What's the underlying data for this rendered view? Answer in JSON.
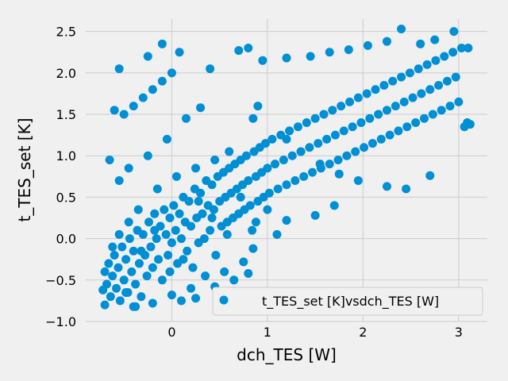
{
  "chart_data": {
    "type": "scatter",
    "xlabel": "dch_TES [W]",
    "ylabel": "t_TES_set [K]",
    "xlim": [
      -0.9,
      3.3
    ],
    "ylim": [
      -1.0,
      2.65
    ],
    "xticks": [
      0,
      1,
      2,
      3
    ],
    "yticks": [
      -1.0,
      -0.5,
      0.0,
      0.5,
      1.0,
      1.5,
      2.0,
      2.5
    ],
    "xtick_labels": [
      "0",
      "1",
      "2",
      "3"
    ],
    "ytick_labels": [
      "−1.0",
      "−0.5",
      "0.0",
      "0.5",
      "1.0",
      "1.5",
      "2.0",
      "2.5"
    ],
    "grid": true,
    "legend_position": "bottom-right",
    "series": [
      {
        "name": "t_TES_set [K]vsdch_TES [W]",
        "color": "#008fd5",
        "points": [
          [
            -0.72,
            -0.62
          ],
          [
            -0.7,
            -0.8
          ],
          [
            -0.68,
            -0.55
          ],
          [
            -0.66,
            -0.3
          ],
          [
            -0.64,
            -0.7
          ],
          [
            -0.62,
            -0.45
          ],
          [
            -0.6,
            -0.2
          ],
          [
            -0.58,
            -0.6
          ],
          [
            -0.56,
            -0.35
          ],
          [
            -0.54,
            -0.75
          ],
          [
            -0.52,
            -0.1
          ],
          [
            -0.5,
            -0.5
          ],
          [
            -0.48,
            -0.25
          ],
          [
            -0.46,
            -0.65
          ],
          [
            -0.44,
            0.0
          ],
          [
            -0.42,
            -0.4
          ],
          [
            -0.4,
            -0.15
          ],
          [
            -0.38,
            -0.55
          ],
          [
            -0.36,
            0.1
          ],
          [
            -0.34,
            -0.3
          ],
          [
            -0.32,
            -0.7
          ],
          [
            -0.3,
            0.05
          ],
          [
            -0.28,
            -0.2
          ],
          [
            -0.26,
            -0.45
          ],
          [
            -0.24,
            0.2
          ],
          [
            -0.22,
            -0.1
          ],
          [
            -0.2,
            -0.35
          ],
          [
            -0.18,
            0.3
          ],
          [
            -0.16,
            0.0
          ],
          [
            -0.14,
            -0.25
          ],
          [
            -0.12,
            0.15
          ],
          [
            -0.1,
            -0.5
          ],
          [
            -0.08,
            0.35
          ],
          [
            -0.06,
            0.05
          ],
          [
            -0.04,
            -0.2
          ],
          [
            -0.02,
            0.25
          ],
          [
            0.0,
            -0.05
          ],
          [
            0.02,
            0.4
          ],
          [
            0.04,
            0.1
          ],
          [
            0.06,
            -0.3
          ],
          [
            0.08,
            0.3
          ],
          [
            0.1,
            0.0
          ],
          [
            0.12,
            0.5
          ],
          [
            0.14,
            0.2
          ],
          [
            0.16,
            -0.15
          ],
          [
            0.18,
            0.45
          ],
          [
            0.2,
            0.15
          ],
          [
            0.22,
            -0.35
          ],
          [
            0.24,
            0.6
          ],
          [
            0.26,
            0.25
          ],
          [
            0.28,
            -0.05
          ],
          [
            0.3,
            0.55
          ],
          [
            0.32,
            0.3
          ],
          [
            0.34,
            0.0
          ],
          [
            0.36,
            0.7
          ],
          [
            0.38,
            0.4
          ],
          [
            0.4,
            0.1
          ],
          [
            0.42,
            0.65
          ],
          [
            0.44,
            0.35
          ],
          [
            0.46,
            -0.2
          ],
          [
            0.48,
            0.75
          ],
          [
            0.5,
            0.45
          ],
          [
            0.52,
            0.15
          ],
          [
            0.54,
            0.8
          ],
          [
            0.56,
            0.5
          ],
          [
            0.58,
            0.2
          ],
          [
            0.6,
            0.85
          ],
          [
            0.62,
            0.55
          ],
          [
            0.64,
            0.25
          ],
          [
            0.66,
            0.9
          ],
          [
            0.68,
            0.6
          ],
          [
            0.7,
            0.3
          ],
          [
            0.72,
            0.95
          ],
          [
            0.74,
            0.65
          ],
          [
            0.76,
            0.35
          ],
          [
            0.78,
            1.0
          ],
          [
            0.8,
            0.7
          ],
          [
            0.82,
            0.4
          ],
          [
            0.84,
            0.1
          ],
          [
            0.86,
            1.05
          ],
          [
            0.88,
            0.75
          ],
          [
            0.9,
            0.45
          ],
          [
            0.92,
            1.1
          ],
          [
            0.94,
            0.8
          ],
          [
            0.96,
            0.5
          ],
          [
            0.98,
            1.15
          ],
          [
            1.0,
            0.85
          ],
          [
            1.02,
            0.55
          ],
          [
            1.05,
            1.2
          ],
          [
            1.08,
            0.9
          ],
          [
            1.11,
            0.6
          ],
          [
            1.14,
            1.25
          ],
          [
            1.17,
            0.95
          ],
          [
            1.2,
            0.65
          ],
          [
            1.23,
            1.3
          ],
          [
            1.26,
            1.0
          ],
          [
            1.29,
            0.7
          ],
          [
            1.32,
            1.35
          ],
          [
            1.35,
            1.05
          ],
          [
            1.38,
            0.75
          ],
          [
            1.41,
            1.4
          ],
          [
            1.44,
            1.1
          ],
          [
            1.47,
            0.8
          ],
          [
            1.5,
            1.45
          ],
          [
            1.53,
            1.15
          ],
          [
            1.56,
            0.85
          ],
          [
            1.59,
            1.5
          ],
          [
            1.62,
            1.2
          ],
          [
            1.65,
            0.9
          ],
          [
            1.68,
            1.55
          ],
          [
            1.71,
            1.25
          ],
          [
            1.74,
            0.95
          ],
          [
            1.77,
            1.6
          ],
          [
            1.8,
            1.3
          ],
          [
            1.83,
            1.0
          ],
          [
            1.86,
            1.65
          ],
          [
            1.89,
            1.35
          ],
          [
            1.92,
            1.05
          ],
          [
            1.95,
            1.7
          ],
          [
            1.98,
            1.4
          ],
          [
            2.01,
            1.1
          ],
          [
            2.04,
            1.75
          ],
          [
            2.07,
            1.45
          ],
          [
            2.1,
            1.15
          ],
          [
            2.13,
            1.8
          ],
          [
            2.16,
            1.5
          ],
          [
            2.19,
            1.2
          ],
          [
            2.22,
            1.85
          ],
          [
            2.25,
            1.55
          ],
          [
            2.28,
            1.25
          ],
          [
            2.31,
            1.9
          ],
          [
            2.34,
            1.6
          ],
          [
            2.37,
            1.3
          ],
          [
            2.4,
            1.95
          ],
          [
            2.43,
            1.65
          ],
          [
            2.46,
            1.35
          ],
          [
            2.49,
            2.0
          ],
          [
            2.52,
            1.7
          ],
          [
            2.55,
            1.4
          ],
          [
            2.58,
            2.05
          ],
          [
            2.61,
            1.75
          ],
          [
            2.64,
            1.45
          ],
          [
            2.67,
            2.1
          ],
          [
            2.7,
            1.8
          ],
          [
            2.73,
            1.5
          ],
          [
            2.76,
            2.15
          ],
          [
            2.79,
            1.85
          ],
          [
            2.82,
            1.55
          ],
          [
            2.85,
            2.2
          ],
          [
            2.88,
            1.9
          ],
          [
            2.91,
            1.6
          ],
          [
            2.94,
            2.25
          ],
          [
            2.97,
            1.95
          ],
          [
            3.0,
            1.65
          ],
          [
            3.03,
            2.3
          ],
          [
            3.06,
            1.35
          ],
          [
            3.09,
            1.4
          ],
          [
            3.12,
            1.38
          ],
          [
            3.1,
            2.3
          ],
          [
            2.95,
            2.5
          ],
          [
            -0.6,
            1.55
          ],
          [
            -0.5,
            1.5
          ],
          [
            -0.4,
            1.6
          ],
          [
            -0.3,
            1.7
          ],
          [
            -0.2,
            1.8
          ],
          [
            -0.1,
            1.9
          ],
          [
            0.0,
            2.0
          ],
          [
            -0.25,
            2.2
          ],
          [
            -0.1,
            2.35
          ],
          [
            -0.55,
            2.05
          ],
          [
            0.08,
            2.25
          ],
          [
            0.4,
            2.05
          ],
          [
            0.8,
            2.3
          ],
          [
            0.7,
            2.27
          ],
          [
            0.95,
            2.15
          ],
          [
            1.2,
            2.18
          ],
          [
            1.45,
            2.2
          ],
          [
            1.65,
            2.25
          ],
          [
            1.85,
            2.28
          ],
          [
            2.05,
            2.33
          ],
          [
            2.25,
            2.38
          ],
          [
            2.4,
            2.53
          ],
          [
            2.6,
            2.35
          ],
          [
            2.75,
            2.4
          ],
          [
            1.2,
            1.2
          ],
          [
            1.35,
            1.05
          ],
          [
            1.55,
            0.9
          ],
          [
            1.75,
            0.78
          ],
          [
            1.95,
            0.7
          ],
          [
            2.25,
            0.63
          ],
          [
            2.45,
            0.6
          ],
          [
            2.7,
            0.76
          ],
          [
            1.5,
            0.28
          ],
          [
            1.7,
            0.4
          ],
          [
            -0.45,
            0.2
          ],
          [
            -0.35,
            0.35
          ],
          [
            -0.15,
            0.6
          ],
          [
            0.05,
            0.75
          ],
          [
            0.25,
            0.85
          ],
          [
            0.45,
            0.95
          ],
          [
            0.6,
            1.05
          ],
          [
            -0.65,
            0.95
          ],
          [
            -0.55,
            0.7
          ],
          [
            -0.45,
            0.85
          ],
          [
            0.85,
            1.45
          ],
          [
            0.9,
            1.6
          ],
          [
            0.3,
            1.58
          ],
          [
            0.15,
            1.45
          ],
          [
            -0.05,
            1.2
          ],
          [
            -0.25,
            1.0
          ],
          [
            0.2,
            -0.6
          ],
          [
            0.35,
            -0.45
          ],
          [
            0.55,
            -0.4
          ],
          [
            0.75,
            -0.28
          ],
          [
            0.85,
            -0.12
          ],
          [
            1.1,
            0.05
          ],
          [
            1.2,
            0.22
          ],
          [
            -0.4,
            -0.82
          ],
          [
            -0.2,
            -0.78
          ],
          [
            0.0,
            -0.68
          ],
          [
            0.1,
            -0.75
          ],
          [
            0.25,
            -0.72
          ],
          [
            0.45,
            -0.58
          ],
          [
            0.65,
            -0.5
          ],
          [
            0.8,
            -0.42
          ],
          [
            -0.7,
            -0.4
          ],
          [
            -0.62,
            -0.1
          ],
          [
            -0.55,
            0.05
          ],
          [
            -0.48,
            -0.65
          ],
          [
            -0.38,
            -0.82
          ],
          [
            -0.32,
            -0.15
          ],
          [
            -0.18,
            0.1
          ],
          [
            -0.02,
            -0.4
          ],
          [
            0.12,
            -0.25
          ],
          [
            0.28,
            0.45
          ],
          [
            0.42,
            0.25
          ],
          [
            0.58,
            0.05
          ],
          [
            0.72,
            0.5
          ],
          [
            0.88,
            0.2
          ],
          [
            1.0,
            0.35
          ]
        ]
      }
    ]
  }
}
